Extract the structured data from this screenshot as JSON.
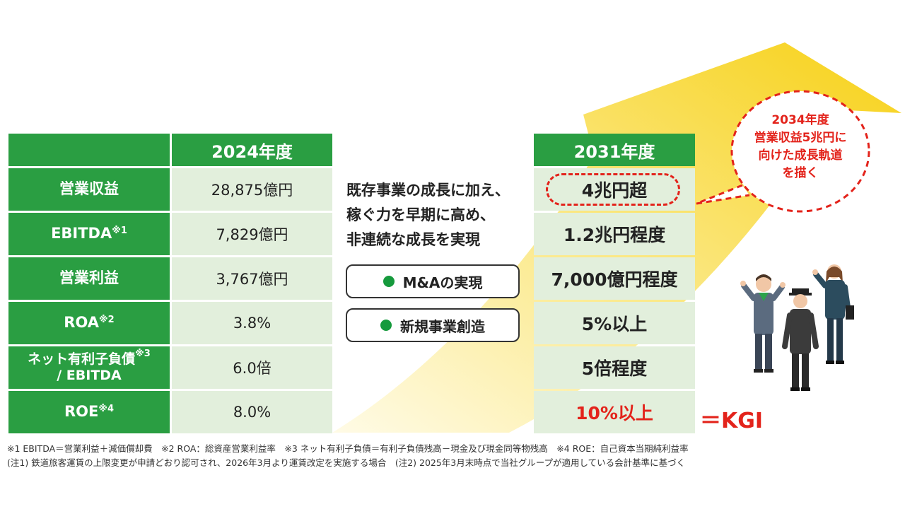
{
  "table": {
    "header_2024": "2024年度",
    "header_2031": "2031年度",
    "rows": [
      {
        "label": "営業収益",
        "sup": "",
        "label2": "",
        "v2024": "28,875億円",
        "v2031": "4兆円超"
      },
      {
        "label": "EBITDA",
        "sup": "※1",
        "label2": "",
        "v2024": "7,829億円",
        "v2031": "1.2兆円程度"
      },
      {
        "label": "営業利益",
        "sup": "",
        "label2": "",
        "v2024": "3,767億円",
        "v2031": "7,000億円程度"
      },
      {
        "label": "ROA",
        "sup": "※2",
        "label2": "",
        "v2024": "3.8%",
        "v2031": "5%以上"
      },
      {
        "label": "ネット有利子負債",
        "sup": "※3",
        "label2": "/ EBITDA",
        "v2024": "6.0倍",
        "v2031": "5倍程度"
      },
      {
        "label": "ROE",
        "sup": "※4",
        "label2": "",
        "v2024": "8.0%",
        "v2031": "10%以上"
      }
    ]
  },
  "middle": {
    "lines": [
      "既存事業の成長に加え、",
      "稼ぐ力を早期に高め、",
      "非連続な成長を実現"
    ],
    "pill1": "M&Aの実現",
    "pill2": "新規事業創造"
  },
  "kgi": "＝KGI",
  "bubble": {
    "lines": [
      "2034年度",
      "営業収益5兆円に",
      "向けた成長軌道",
      "を描く"
    ]
  },
  "notes": [
    "※1 EBITDA＝営業利益＋減価償却費　※2 ROA：総資産営業利益率　※3 ネット有利子負債＝有利子負債残高－現金及び現金同等物残高　※4 ROE：自己資本当期純利益率",
    "(注1) 鉄道旅客運賃の上限変更が申請どおり認可され、2026年3月より運賃改定を実施する場合　(注2) 2025年3月末時点で当社グループが適用している会計基準に基づく"
  ],
  "colors": {
    "green": "#2a9e42",
    "light_green": "#e2efdc",
    "red": "#e3231b",
    "arrow_yellow": "#f7d117"
  },
  "icons": [
    "growth-arrow-icon",
    "staff-illustration-icon"
  ]
}
